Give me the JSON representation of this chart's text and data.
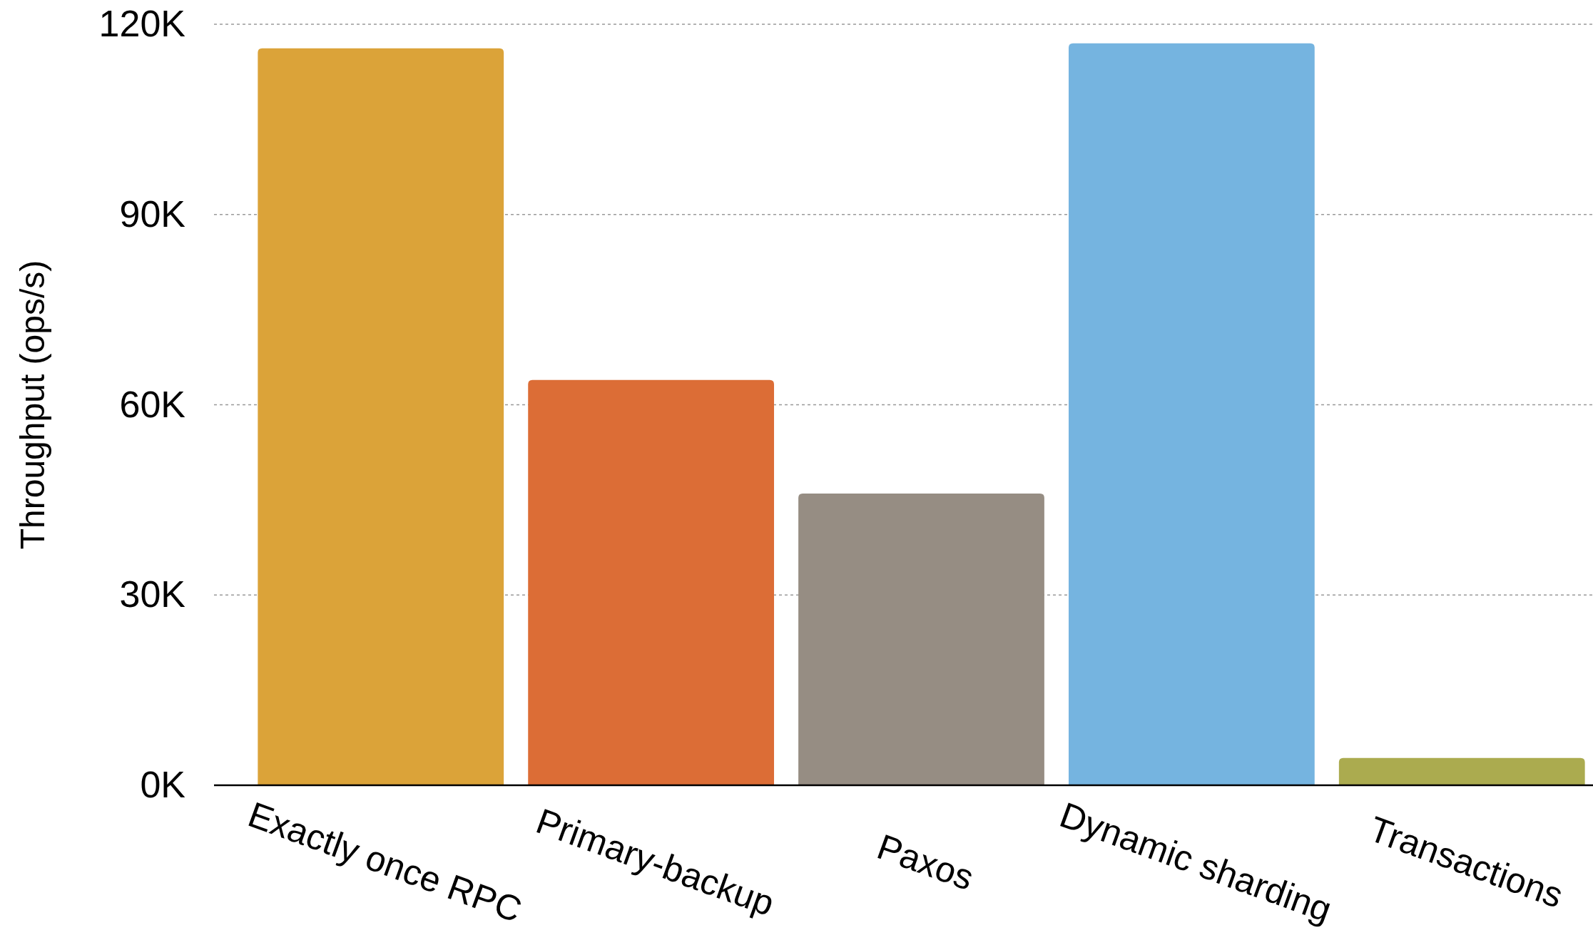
{
  "chart_data": {
    "type": "bar",
    "ylabel": "Throughput (ops/s)",
    "categories": [
      "Exactly once RPC",
      "Primary-backup",
      "Paxos",
      "Dynamic sharding",
      "Transactions"
    ],
    "values": [
      116200,
      63900,
      46000,
      117000,
      4300
    ],
    "colors": [
      "#dba339",
      "#dc6d36",
      "#968d83",
      "#75b4e0",
      "#abab4f"
    ],
    "ylim": [
      0,
      120000
    ],
    "yticks": [
      {
        "value": 0,
        "label": "0K"
      },
      {
        "value": 30000,
        "label": "30K"
      },
      {
        "value": 60000,
        "label": "60K"
      },
      {
        "value": 90000,
        "label": "90K"
      },
      {
        "value": 120000,
        "label": "120K"
      }
    ],
    "grid": "y"
  }
}
